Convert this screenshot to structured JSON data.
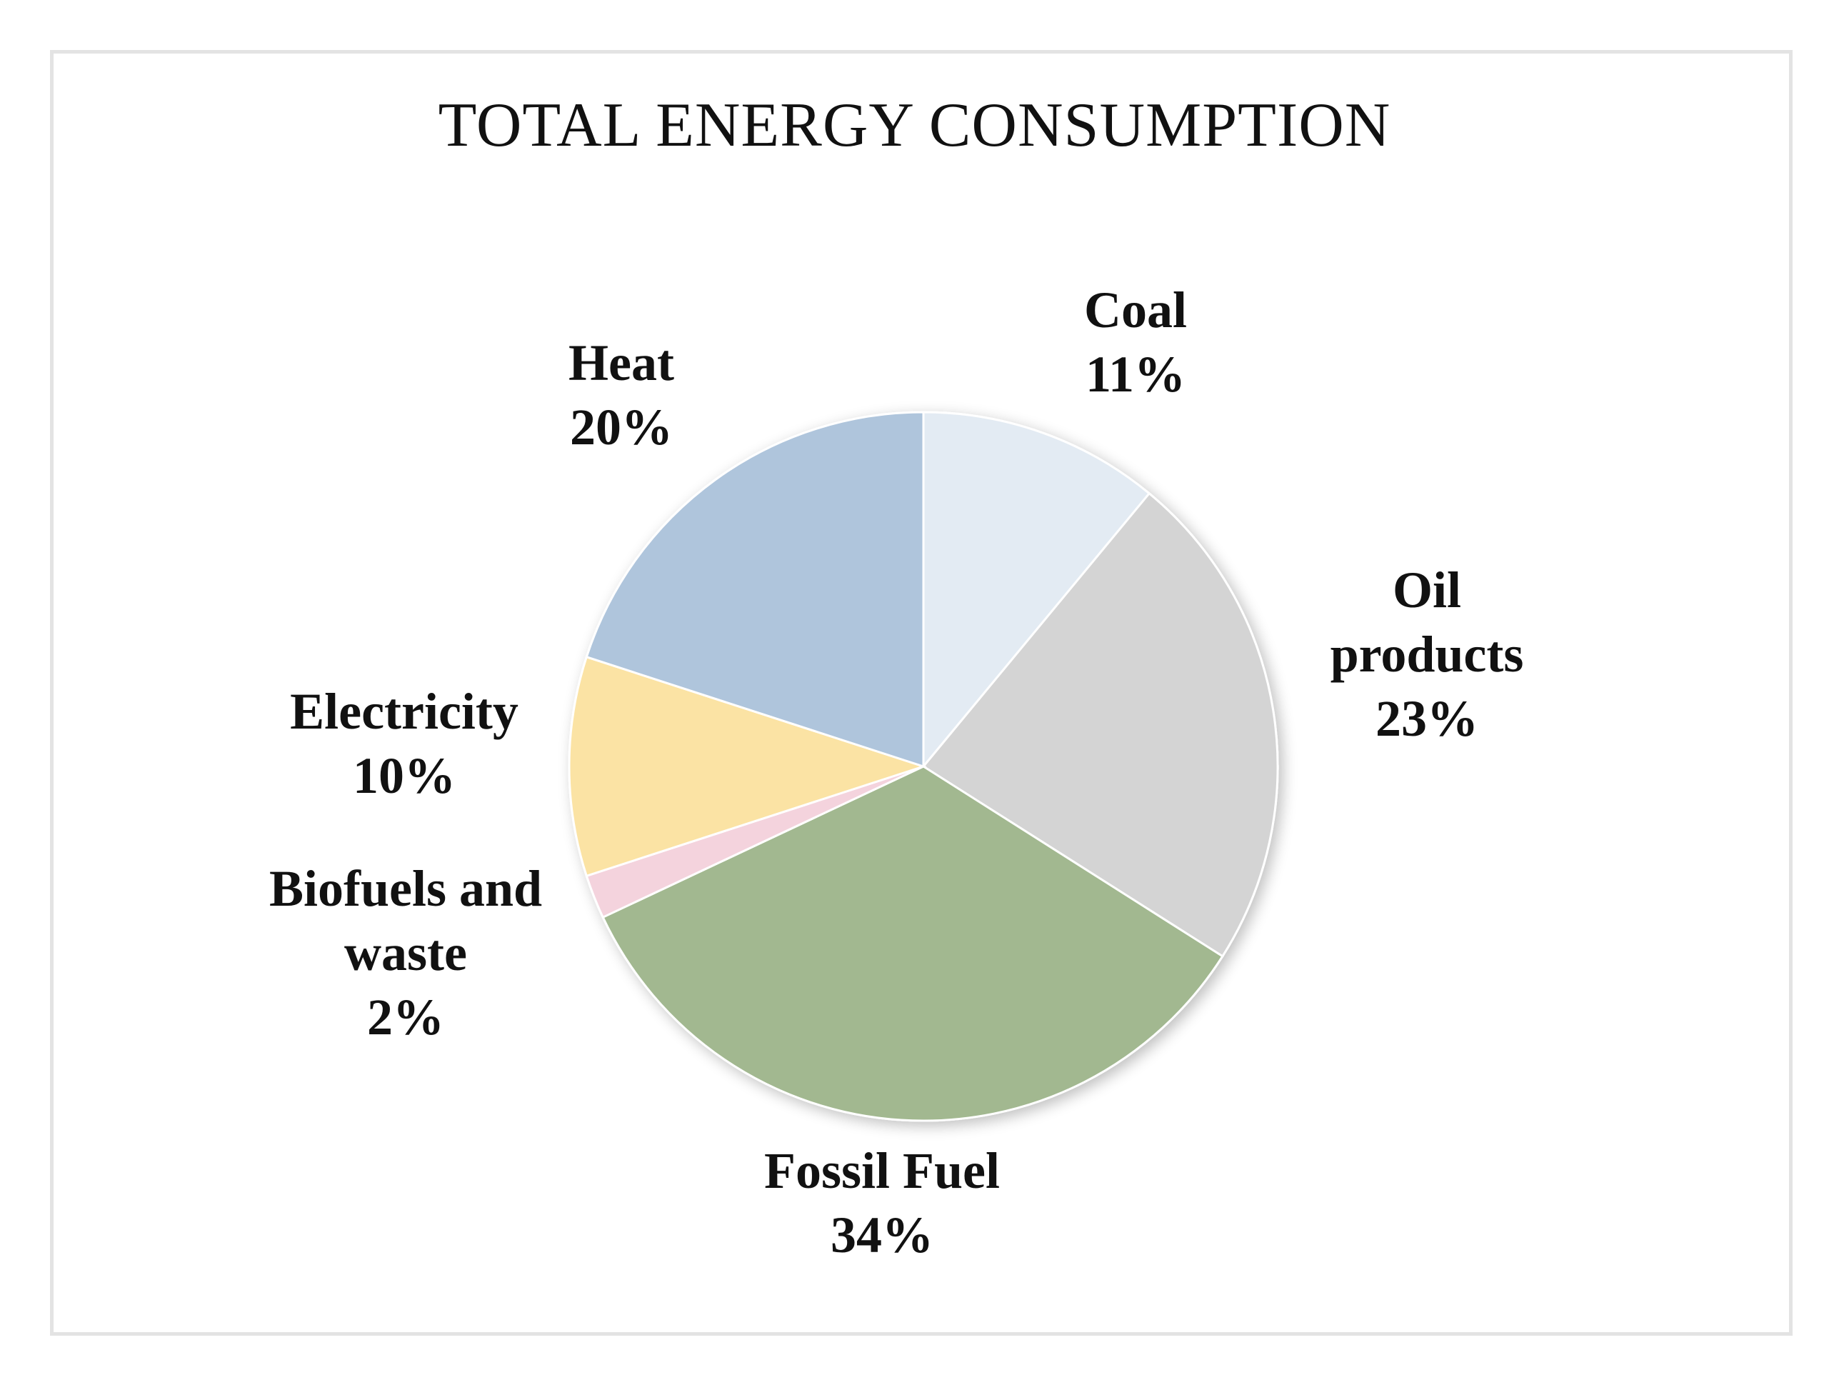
{
  "chart_data": {
    "type": "pie",
    "title": "TOTAL ENERGY CONSUMPTION",
    "slices": [
      {
        "label": "Coal",
        "label_lines": [
          "Coal"
        ],
        "pct_text": "11%",
        "value": 11,
        "color": "#e3ebf3"
      },
      {
        "label": "Oil products",
        "label_lines": [
          "Oil",
          "products"
        ],
        "pct_text": "23%",
        "value": 23,
        "color": "#d4d4d4"
      },
      {
        "label": "Fossil Fuel",
        "label_lines": [
          "Fossil Fuel"
        ],
        "pct_text": "34%",
        "value": 34,
        "color": "#a2b890"
      },
      {
        "label": "Biofuels and waste",
        "label_lines": [
          "Biofuels and",
          "waste"
        ],
        "pct_text": "2%",
        "value": 2,
        "color": "#f4d3dd"
      },
      {
        "label": "Electricity",
        "label_lines": [
          "Electricity"
        ],
        "pct_text": "10%",
        "value": 10,
        "color": "#fbe3a4"
      },
      {
        "label": "Heat",
        "label_lines": [
          "Heat"
        ],
        "pct_text": "20%",
        "value": 20,
        "color": "#afc5dc"
      }
    ]
  }
}
